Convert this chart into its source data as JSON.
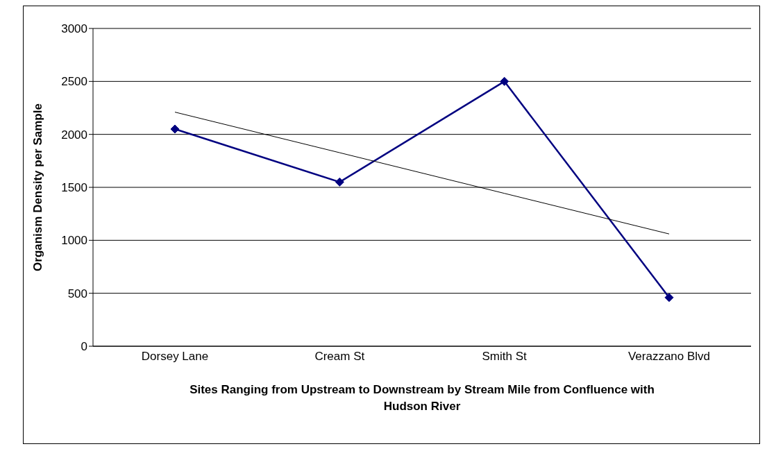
{
  "chart_data": {
    "type": "line",
    "xlabel": "Sites Ranging from Upstream to Downstream by Stream Mile from Confluence with Hudson River",
    "ylabel": "Organism Density per Sample",
    "categories": [
      "Dorsey Lane",
      "Cream St",
      "Smith St",
      "Verazzano Blvd"
    ],
    "series": [
      {
        "color": "#000080",
        "values": [
          2050,
          1550,
          2500,
          460
        ],
        "marker": "diamond"
      },
      {
        "type": "line",
        "color": "#000000",
        "values": [
          2210,
          1827,
          1443,
          1060
        ],
        "marker": "none"
      }
    ],
    "ylim": [
      0,
      3000
    ],
    "yticks": [
      0,
      500,
      1000,
      1500,
      2000,
      2500,
      3000
    ],
    "grid": "y"
  }
}
